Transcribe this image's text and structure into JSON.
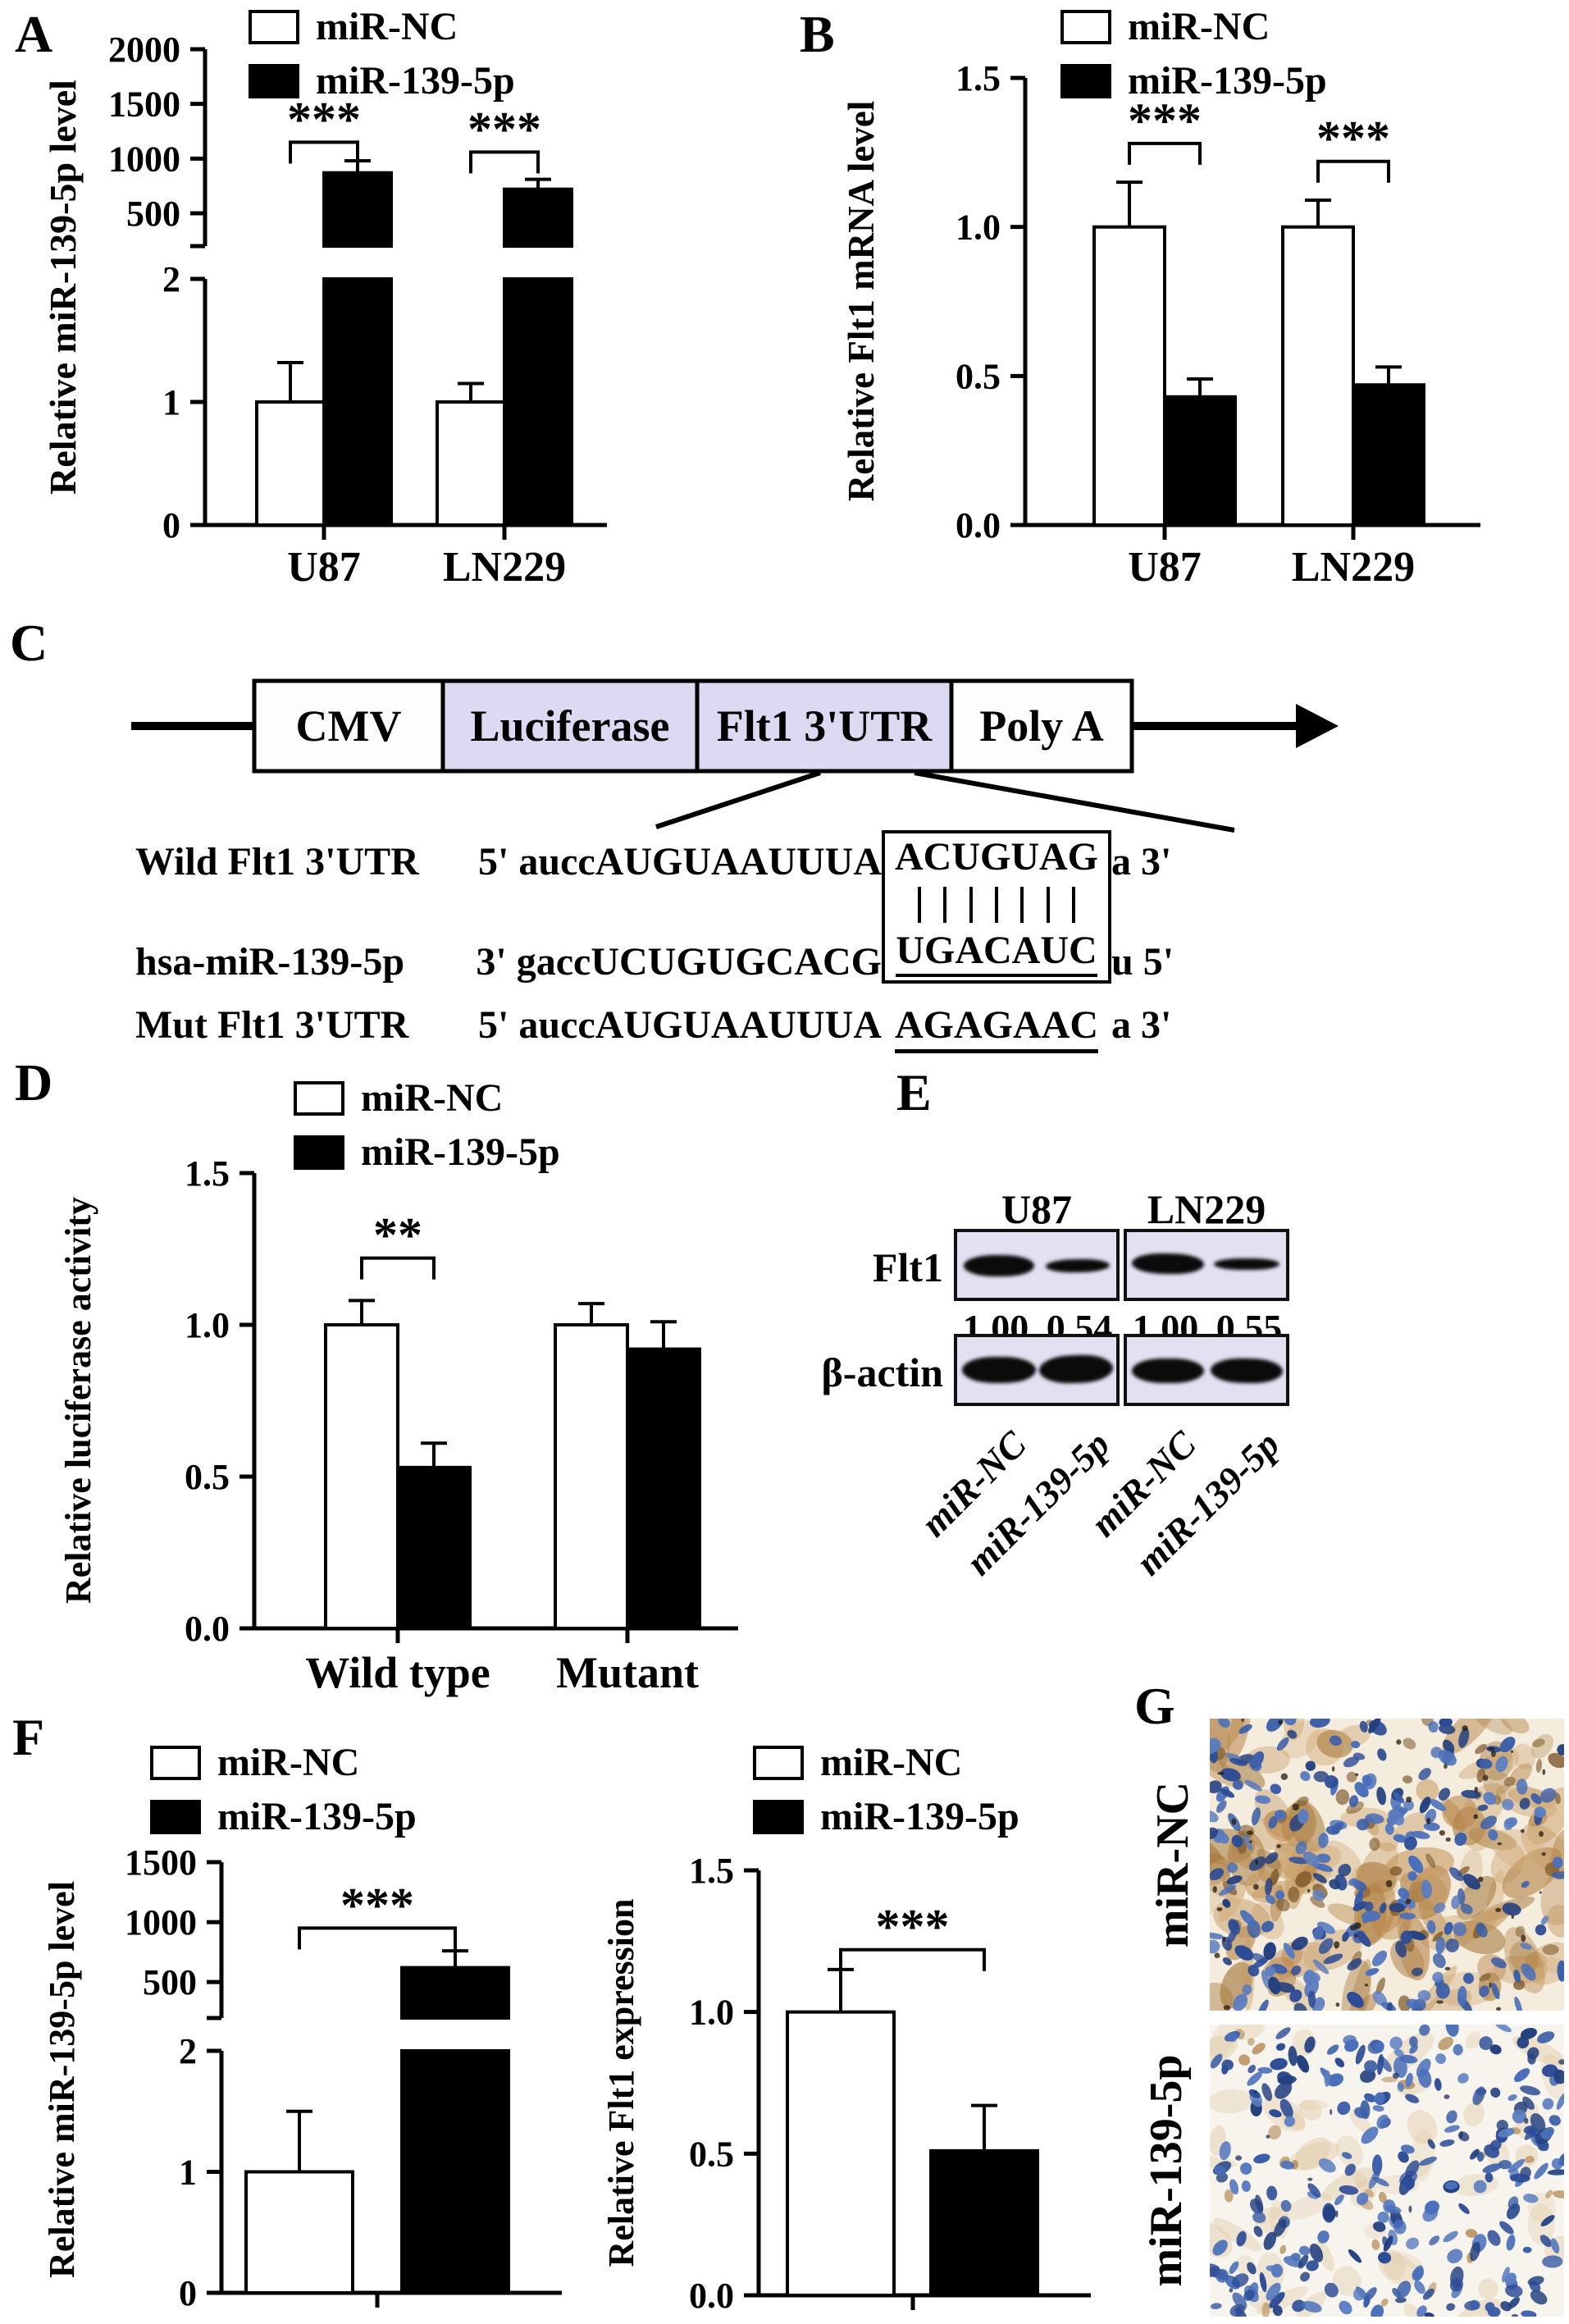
{
  "figure": {
    "background": "#ffffff",
    "panels": {
      "A": {
        "letter": "A"
      },
      "B": {
        "letter": "B"
      },
      "C": {
        "letter": "C",
        "construct": {
          "boxes": [
            {
              "label": "CMV",
              "fill": "#fdfdfe"
            },
            {
              "label": "Luciferase",
              "fill": "#dcdaf2"
            },
            {
              "label": "Flt1 3'UTR",
              "fill": "#dcdaf2"
            },
            {
              "label": "Poly A",
              "fill": "#fdfdfe"
            }
          ]
        },
        "alignment": {
          "rows": [
            {
              "label": "Wild Flt1 3'UTR",
              "pre": "5' auccAUGUAAUUUA",
              "seed": "ACUGUAG",
              "suffix": "a 3'"
            },
            {
              "label": "hsa-miR-139-5p",
              "pre": "3' gaccUCUGUGCACG",
              "seed": "UGACAUC",
              "suffix": "u 5'"
            },
            {
              "label": "Mut Flt1 3'UTR",
              "pre": "5' auccAUGUAAUUUA",
              "seed": "AGAGAAC",
              "suffix": "a 3'"
            }
          ],
          "pairing_bar_count": 7
        }
      },
      "D": {
        "letter": "D"
      },
      "E": {
        "letter": "E",
        "cell_lines": [
          "U87",
          "LN229"
        ],
        "proteins": [
          "Flt1",
          "β-actin"
        ],
        "quantification": [
          "1.00",
          "0.54",
          "1.00",
          "0.55"
        ],
        "lane_labels": [
          "miR-NC",
          "miR-139-5p",
          "miR-NC",
          "miR-139-5p"
        ],
        "blot_background": "#e3e1f1"
      },
      "F": {
        "letter": "F"
      },
      "G": {
        "letter": "G",
        "image_labels": [
          "miR-NC",
          "miR-139-5p"
        ],
        "stain_palette": {
          "nuclei": "#3b5ea8",
          "cytoplasm": "#b9854a",
          "background_top": "#f4ecdd",
          "background_bottom": "#f7f4ee"
        }
      }
    }
  },
  "chart_data": [
    {
      "id": "chartA",
      "panel": "A",
      "type": "bar",
      "title": "",
      "xlabel": "",
      "ylabel": "Relative miR-139-5p level",
      "categories": [
        "U87",
        "LN229"
      ],
      "series": [
        {
          "name": "miR-NC",
          "fill": "#ffffff",
          "values": [
            1.0,
            1.0
          ],
          "errors": [
            0.32,
            0.15
          ]
        },
        {
          "name": "miR-139-5p",
          "fill": "#000000",
          "values": [
            870,
            720
          ],
          "errors": [
            110,
            90
          ]
        }
      ],
      "broken_axis": true,
      "lower_axis": {
        "range": [
          0,
          2
        ],
        "ticks": [
          0,
          1,
          2
        ],
        "tick_labels": [
          "0",
          "1",
          "2"
        ]
      },
      "upper_axis": {
        "range": [
          200,
          2000
        ],
        "ticks": [
          500,
          1000,
          1500,
          2000
        ],
        "tick_labels": [
          "500",
          "1000",
          "1500",
          "2000"
        ]
      },
      "significance": [
        {
          "group": 0,
          "label": "***"
        },
        {
          "group": 1,
          "label": "***"
        }
      ],
      "legend_position": "top",
      "grid": false
    },
    {
      "id": "chartB",
      "panel": "B",
      "type": "bar",
      "title": "",
      "xlabel": "",
      "ylabel": "Relative Flt1 mRNA level",
      "categories": [
        "U87",
        "LN229"
      ],
      "series": [
        {
          "name": "miR-NC",
          "fill": "#ffffff",
          "values": [
            1.0,
            1.0
          ],
          "errors": [
            0.15,
            0.09
          ]
        },
        {
          "name": "miR-139-5p",
          "fill": "#000000",
          "values": [
            0.43,
            0.47
          ],
          "errors": [
            0.06,
            0.06
          ]
        }
      ],
      "broken_axis": false,
      "ylim": [
        0,
        1.5
      ],
      "ticks": [
        0,
        0.5,
        1.0,
        1.5
      ],
      "tick_labels": [
        "0.0",
        "0.5",
        "1.0",
        "1.5"
      ],
      "significance": [
        {
          "group": 0,
          "label": "***"
        },
        {
          "group": 1,
          "label": "***"
        }
      ],
      "legend_position": "top",
      "grid": false
    },
    {
      "id": "chartD",
      "panel": "D",
      "type": "bar",
      "title": "",
      "xlabel": "",
      "ylabel": "Relative luciferase activity",
      "categories": [
        "Wild type",
        "Mutant"
      ],
      "series": [
        {
          "name": "miR-NC",
          "fill": "#ffffff",
          "values": [
            1.0,
            1.0
          ],
          "errors": [
            0.08,
            0.07
          ]
        },
        {
          "name": "miR-139-5p",
          "fill": "#000000",
          "values": [
            0.53,
            0.92
          ],
          "errors": [
            0.08,
            0.09
          ]
        }
      ],
      "broken_axis": false,
      "ylim": [
        0,
        1.5
      ],
      "ticks": [
        0,
        0.5,
        1.0,
        1.5
      ],
      "tick_labels": [
        "0.0",
        "0.5",
        "1.0",
        "1.5"
      ],
      "significance": [
        {
          "group": 0,
          "label": "**"
        }
      ],
      "legend_position": "top",
      "grid": false
    },
    {
      "id": "chartF1",
      "panel": "F",
      "type": "bar",
      "title": "",
      "xlabel": "",
      "ylabel": "Relative miR-139-5p level",
      "categories": [
        ""
      ],
      "series": [
        {
          "name": "miR-NC",
          "fill": "#ffffff",
          "values": [
            1.0
          ],
          "errors": [
            0.5
          ]
        },
        {
          "name": "miR-139-5p",
          "fill": "#000000",
          "values": [
            620
          ],
          "errors": [
            140
          ]
        }
      ],
      "broken_axis": true,
      "lower_axis": {
        "range": [
          0,
          2
        ],
        "ticks": [
          0,
          1,
          2
        ],
        "tick_labels": [
          "0",
          "1",
          "2"
        ]
      },
      "upper_axis": {
        "range": [
          200,
          1500
        ],
        "ticks": [
          500,
          1000,
          1500
        ],
        "tick_labels": [
          "500",
          "1000",
          "1500"
        ]
      },
      "significance": [
        {
          "group": 0,
          "label": "***"
        }
      ],
      "legend_position": "top",
      "grid": false
    },
    {
      "id": "chartF2",
      "panel": "F",
      "type": "bar",
      "title": "",
      "xlabel": "",
      "ylabel": "Relative Flt1 expression",
      "categories": [
        ""
      ],
      "series": [
        {
          "name": "miR-NC",
          "fill": "#ffffff",
          "values": [
            1.0
          ],
          "errors": [
            0.15
          ]
        },
        {
          "name": "miR-139-5p",
          "fill": "#000000",
          "values": [
            0.51
          ],
          "errors": [
            0.16
          ]
        }
      ],
      "broken_axis": false,
      "ylim": [
        0,
        1.5
      ],
      "ticks": [
        0,
        0.5,
        1.0,
        1.5
      ],
      "tick_labels": [
        "0.0",
        "0.5",
        "1.0",
        "1.5"
      ],
      "significance": [
        {
          "group": 0,
          "label": "***"
        }
      ],
      "legend_position": "top",
      "grid": false
    }
  ]
}
